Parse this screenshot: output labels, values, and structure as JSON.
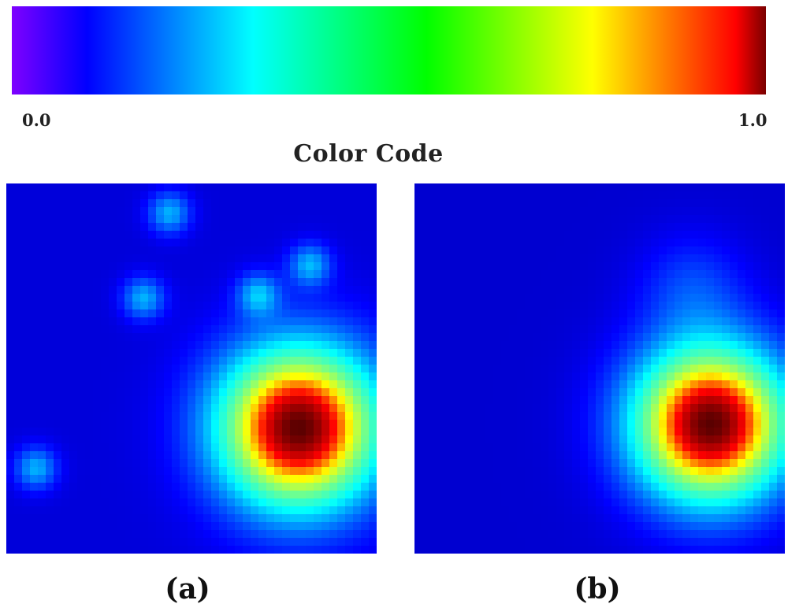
{
  "chart_data": {
    "type": "heatmap",
    "colorbar": {
      "title": "Color Code",
      "min_label": "0.0",
      "max_label": "1.0",
      "range": [
        0.0,
        1.0
      ],
      "colormap": [
        "#7f00ff",
        "#0000ff",
        "#00ffff",
        "#00ff00",
        "#ffff00",
        "#ff0000",
        "#7a0000"
      ]
    },
    "panels": [
      {
        "label": "a",
        "background_value": 0.08,
        "peaks": [
          {
            "x": 0.79,
            "y": 0.66,
            "value": 1.0,
            "spread": 0.15
          },
          {
            "x": 0.44,
            "y": 0.08,
            "value": 0.3,
            "spread": 0.04
          },
          {
            "x": 0.37,
            "y": 0.31,
            "value": 0.3,
            "spread": 0.04
          },
          {
            "x": 0.68,
            "y": 0.3,
            "value": 0.3,
            "spread": 0.04
          },
          {
            "x": 0.82,
            "y": 0.22,
            "value": 0.3,
            "spread": 0.04
          },
          {
            "x": 0.08,
            "y": 0.77,
            "value": 0.3,
            "spread": 0.04
          }
        ]
      },
      {
        "label": "b",
        "background_value": 0.07,
        "peaks": [
          {
            "x": 0.8,
            "y": 0.65,
            "value": 1.0,
            "spread": 0.145
          },
          {
            "x": 0.75,
            "y": 0.28,
            "value": 0.18,
            "spread": 0.1
          }
        ]
      }
    ]
  },
  "labels": {
    "a_open": "(",
    "a_letter": "a",
    "a_close": ")",
    "b_open": "(",
    "b_letter": "b",
    "b_close": ")"
  }
}
